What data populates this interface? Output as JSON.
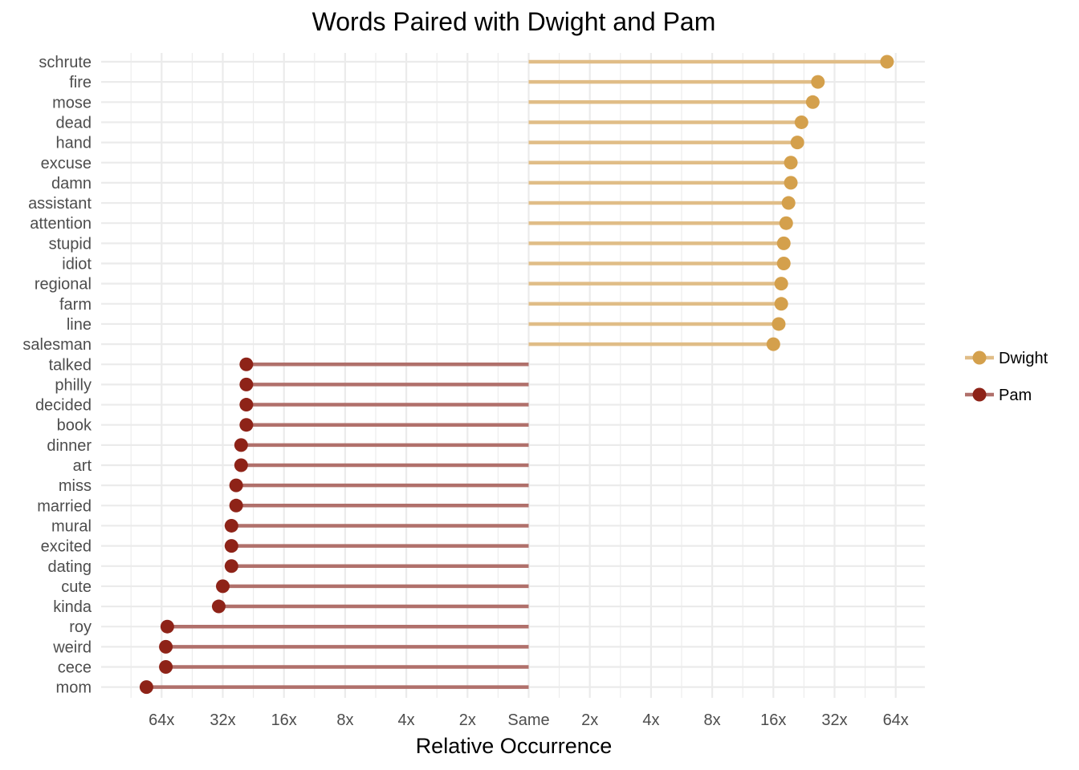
{
  "chart_data": {
    "type": "lollipop",
    "title": "Words Paired with Dwight and Pam",
    "xlabel": "Relative Occurrence",
    "ylabel": "",
    "x_scale": "log2",
    "x_ticks": [
      {
        "value": -64,
        "label": "64x"
      },
      {
        "value": -32,
        "label": "32x"
      },
      {
        "value": -16,
        "label": "16x"
      },
      {
        "value": -8,
        "label": "8x"
      },
      {
        "value": -4,
        "label": "4x"
      },
      {
        "value": -2,
        "label": "2x"
      },
      {
        "value": 1,
        "label": "Same"
      },
      {
        "value": 2,
        "label": "2x"
      },
      {
        "value": 4,
        "label": "4x"
      },
      {
        "value": 8,
        "label": "8x"
      },
      {
        "value": 16,
        "label": "16x"
      },
      {
        "value": 32,
        "label": "32x"
      },
      {
        "value": 64,
        "label": "64x"
      }
    ],
    "xlim": [
      -128,
      128
    ],
    "grid": true,
    "legend_position": "right",
    "series": [
      {
        "name": "Dwight",
        "color": "#d4a04c",
        "stem_color": "#e0bd87",
        "points": [
          {
            "word": "schrute",
            "ratio": 58
          },
          {
            "word": "fire",
            "ratio": 26.5
          },
          {
            "word": "mose",
            "ratio": 25
          },
          {
            "word": "dead",
            "ratio": 22
          },
          {
            "word": "hand",
            "ratio": 21
          },
          {
            "word": "excuse",
            "ratio": 19.5
          },
          {
            "word": "damn",
            "ratio": 19.5
          },
          {
            "word": "assistant",
            "ratio": 19
          },
          {
            "word": "attention",
            "ratio": 18.5
          },
          {
            "word": "stupid",
            "ratio": 18
          },
          {
            "word": "idiot",
            "ratio": 18
          },
          {
            "word": "regional",
            "ratio": 17.5
          },
          {
            "word": "farm",
            "ratio": 17.5
          },
          {
            "word": "line",
            "ratio": 17
          },
          {
            "word": "salesman",
            "ratio": 16
          }
        ]
      },
      {
        "name": "Pam",
        "color": "#8e2318",
        "stem_color": "#b0706b",
        "points": [
          {
            "word": "talked",
            "ratio": 24.5
          },
          {
            "word": "philly",
            "ratio": 24.5
          },
          {
            "word": "decided",
            "ratio": 24.5
          },
          {
            "word": "book",
            "ratio": 24.5
          },
          {
            "word": "dinner",
            "ratio": 26
          },
          {
            "word": "art",
            "ratio": 26
          },
          {
            "word": "miss",
            "ratio": 27.5
          },
          {
            "word": "married",
            "ratio": 27.5
          },
          {
            "word": "mural",
            "ratio": 29
          },
          {
            "word": "excited",
            "ratio": 29
          },
          {
            "word": "dating",
            "ratio": 29
          },
          {
            "word": "cute",
            "ratio": 32
          },
          {
            "word": "kinda",
            "ratio": 33.5
          },
          {
            "word": "roy",
            "ratio": 60
          },
          {
            "word": "weird",
            "ratio": 61
          },
          {
            "word": "cece",
            "ratio": 61
          },
          {
            "word": "mom",
            "ratio": 76
          }
        ]
      }
    ]
  }
}
